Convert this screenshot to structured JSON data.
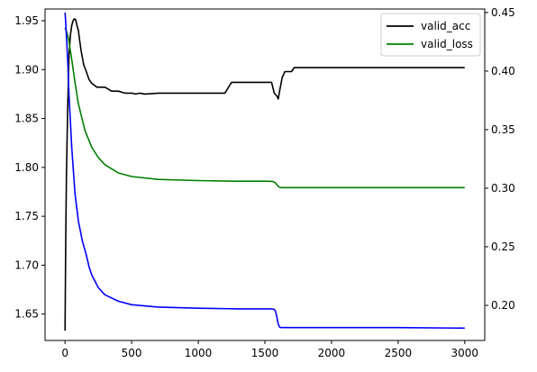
{
  "chart_data": {
    "type": "line",
    "title": "",
    "xlabel": "",
    "ylabel_left": "",
    "ylabel_right": "",
    "x_ticks": [
      0,
      500,
      1000,
      1500,
      2000,
      2500,
      3000
    ],
    "x_tick_labels": [
      "0",
      "500",
      "1000",
      "1500",
      "2000",
      "2500",
      "3000"
    ],
    "xlim": [
      -150,
      3150
    ],
    "left_axis": {
      "ylim": [
        1.623,
        1.962
      ],
      "ticks": [
        1.65,
        1.7,
        1.75,
        1.8,
        1.85,
        1.9,
        1.95
      ],
      "tick_labels": [
        "1.65",
        "1.70",
        "1.75",
        "1.80",
        "1.85",
        "1.90",
        "1.95"
      ]
    },
    "right_axis": {
      "ylim": [
        0.17,
        0.453
      ],
      "ticks": [
        0.2,
        0.25,
        0.3,
        0.35,
        0.4,
        0.45
      ],
      "tick_labels": [
        "0.20",
        "0.25",
        "0.30",
        "0.35",
        "0.40",
        "0.45"
      ]
    },
    "legend": {
      "placement": "upper-right",
      "entries": [
        {
          "label": "valid_acc",
          "color": "#000000"
        },
        {
          "label": "valid_loss",
          "color": "#008000"
        }
      ]
    },
    "series": [
      {
        "name": "valid_acc",
        "color": "#000000",
        "axis": "left",
        "x": [
          0,
          5,
          10,
          20,
          30,
          40,
          50,
          60,
          70,
          80,
          90,
          100,
          110,
          120,
          140,
          160,
          180,
          200,
          240,
          300,
          350,
          400,
          450,
          500,
          530,
          560,
          600,
          700,
          800,
          900,
          1000,
          1100,
          1200,
          1250,
          1300,
          1400,
          1500,
          1550,
          1570,
          1590,
          1600,
          1610,
          1630,
          1650,
          1680,
          1700,
          1720,
          1800,
          2000,
          2500,
          3000
        ],
        "values": [
          1.633,
          1.72,
          1.79,
          1.86,
          1.915,
          1.935,
          1.945,
          1.95,
          1.952,
          1.951,
          1.945,
          1.94,
          1.93,
          1.92,
          1.905,
          1.898,
          1.89,
          1.886,
          1.882,
          1.882,
          1.878,
          1.878,
          1.876,
          1.876,
          1.875,
          1.876,
          1.875,
          1.876,
          1.876,
          1.876,
          1.876,
          1.876,
          1.876,
          1.887,
          1.887,
          1.887,
          1.887,
          1.887,
          1.876,
          1.873,
          1.87,
          1.878,
          1.892,
          1.898,
          1.898,
          1.898,
          1.902,
          1.902,
          1.902,
          1.902,
          1.902
        ]
      },
      {
        "name": "valid_loss",
        "color": "#008000",
        "axis": "right",
        "x": [
          0,
          10,
          25,
          50,
          75,
          100,
          150,
          200,
          250,
          300,
          400,
          500,
          700,
          1000,
          1300,
          1500,
          1560,
          1580,
          1600,
          1620,
          1650,
          1700,
          2000,
          2500,
          3000
        ],
        "values": [
          0.437,
          0.434,
          0.428,
          0.41,
          0.39,
          0.372,
          0.349,
          0.335,
          0.326,
          0.32,
          0.313,
          0.31,
          0.3075,
          0.3065,
          0.306,
          0.306,
          0.3058,
          0.3045,
          0.3015,
          0.3005,
          0.3005,
          0.3005,
          0.3005,
          0.3005,
          0.3005
        ]
      },
      {
        "name": "",
        "color": "#0000ff",
        "axis": "right",
        "x": [
          0,
          5,
          10,
          20,
          30,
          50,
          75,
          100,
          130,
          160,
          180,
          200,
          250,
          300,
          400,
          500,
          700,
          1000,
          1300,
          1500,
          1550,
          1570,
          1580,
          1590,
          1600,
          1610,
          1620,
          1650,
          1700,
          2000,
          2500,
          3000
        ],
        "values": [
          0.45,
          0.442,
          0.43,
          0.41,
          0.38,
          0.335,
          0.295,
          0.272,
          0.255,
          0.243,
          0.233,
          0.226,
          0.215,
          0.209,
          0.2035,
          0.2005,
          0.1985,
          0.1975,
          0.197,
          0.197,
          0.197,
          0.1965,
          0.195,
          0.19,
          0.184,
          0.1815,
          0.181,
          0.181,
          0.181,
          0.181,
          0.181,
          0.1805
        ]
      }
    ]
  }
}
